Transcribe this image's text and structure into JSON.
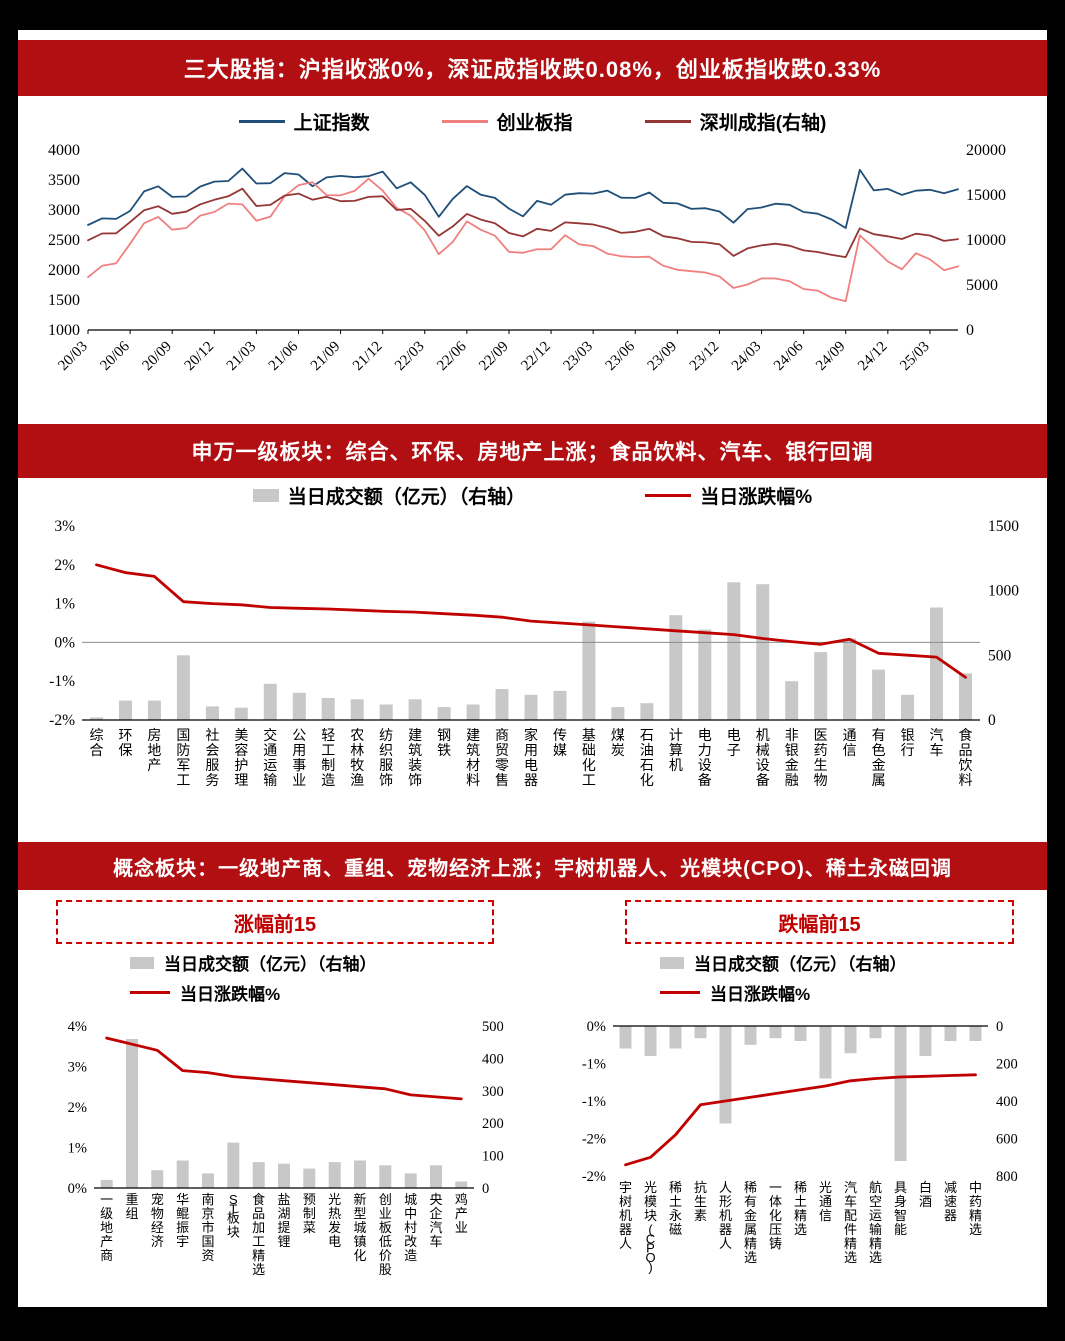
{
  "frame": {
    "bg": "#000000",
    "content_bg": "#ffffff"
  },
  "colors": {
    "banner_bg": "#b20f13",
    "banner_text": "#ffffff",
    "red_line": "#c00000",
    "gray_bar": "#c8c8c8",
    "index_blue": "#1f4e79",
    "chinext_pink": "#f08080",
    "szse_darkred": "#943634",
    "box_border": "#cc0000",
    "box_text": "#c00000",
    "axis_text": "#000000",
    "zero_line": "#8c8c8c"
  },
  "sections": {
    "index": {
      "banner": "三大股指：沪指收涨0%，深证成指收跌0.08%，创业板指收跌0.33%"
    },
    "industry": {
      "banner": "申万一级板块：综合、环保、房地产上涨；食品饮料、汽车、银行回调"
    },
    "concept": {
      "banner": "概念板块：一级地产商、重组、宠物经济上涨；宇树机器人、光模块(CPO)、稀土永磁回调",
      "gain_box": "涨幅前15",
      "loss_box": "跌幅前15"
    }
  },
  "legends": {
    "turnover": "当日成交额（亿元）（右轴）",
    "change": "当日涨跌幅%"
  },
  "chart_data": [
    {
      "id": "index-lines",
      "type": "line",
      "x_tick_labels": [
        "20/03",
        "20/06",
        "20/09",
        "20/12",
        "21/03",
        "21/06",
        "21/09",
        "21/12",
        "22/03",
        "22/06",
        "22/09",
        "22/12",
        "23/03",
        "23/06",
        "23/09",
        "23/12",
        "24/03",
        "24/06",
        "24/09",
        "24/12",
        "25/03"
      ],
      "x_tick_every": 3,
      "left_axis": {
        "min": 1000,
        "max": 4000,
        "ticks": [
          4000,
          3500,
          3000,
          2500,
          2000,
          1500,
          1000
        ]
      },
      "right_axis": {
        "min": 0,
        "max": 20000,
        "ticks": [
          20000,
          15000,
          10000,
          5000,
          0
        ]
      },
      "series": [
        {
          "name": "上证指数",
          "color": "#1f4e79",
          "axis": "left",
          "values": [
            2750,
            2860,
            2852,
            2985,
            3310,
            3395,
            3218,
            3225,
            3392,
            3473,
            3483,
            3690,
            3442,
            3447,
            3615,
            3591,
            3397,
            3544,
            3568,
            3547,
            3564,
            3640,
            3361,
            3462,
            3252,
            2886,
            3186,
            3399,
            3253,
            3202,
            3024,
            2893,
            3151,
            3089,
            3255,
            3280,
            3273,
            3323,
            3205,
            3202,
            3291,
            3120,
            3110,
            3019,
            3030,
            2975,
            2789,
            3015,
            3041,
            3105,
            3087,
            2967,
            2939,
            2842,
            2700,
            3670,
            3326,
            3352,
            3251,
            3321,
            3336,
            3279,
            3347
          ]
        },
        {
          "name": "创业板指",
          "color": "#f08080",
          "axis": "left",
          "values": [
            1880,
            2070,
            2110,
            2439,
            2780,
            2885,
            2672,
            2700,
            2906,
            2966,
            3106,
            3093,
            2821,
            2890,
            3229,
            3413,
            3465,
            3248,
            3245,
            3319,
            3521,
            3322,
            3035,
            2905,
            2660,
            2264,
            2469,
            2810,
            2670,
            2571,
            2302,
            2286,
            2345,
            2346,
            2580,
            2429,
            2399,
            2274,
            2229,
            2215,
            2222,
            2072,
            2003,
            1980,
            1959,
            1891,
            1700,
            1758,
            1860,
            1858,
            1813,
            1683,
            1656,
            1536,
            1480,
            2576,
            2367,
            2141,
            2012,
            2280,
            2179,
            1996,
            2060
          ]
        },
        {
          "name": "深圳成指(右轴)",
          "color": "#943634",
          "axis": "right",
          "values": [
            9962,
            10721,
            10746,
            11992,
            13310,
            13758,
            12907,
            13144,
            13970,
            14470,
            14857,
            15700,
            13778,
            13903,
            14937,
            15161,
            14473,
            14801,
            14309,
            14345,
            14792,
            14857,
            13328,
            13462,
            12118,
            10477,
            11512,
            12896,
            12266,
            11870,
            10778,
            10397,
            11240,
            11016,
            11958,
            11852,
            11726,
            11338,
            10794,
            10914,
            11240,
            10418,
            10190,
            9788,
            9730,
            9525,
            8237,
            9069,
            9401,
            9587,
            9364,
            8849,
            8670,
            8348,
            8100,
            11300,
            10650,
            10415,
            10110,
            10700,
            10504,
            9900,
            10100
          ]
        }
      ]
    },
    {
      "id": "industry",
      "type": "bar-line",
      "categories": [
        "综合",
        "环保",
        "房地产",
        "国防军工",
        "社会服务",
        "美容护理",
        "交通运输",
        "公用事业",
        "轻工制造",
        "农林牧渔",
        "纺织服饰",
        "建筑装饰",
        "钢铁",
        "建筑材料",
        "商贸零售",
        "家用电器",
        "传媒",
        "基础化工",
        "煤炭",
        "石油石化",
        "计算机",
        "电力设备",
        "电子",
        "机械设备",
        "非银金融",
        "医药生物",
        "通信",
        "有色金属",
        "银行",
        "汽车",
        "食品饮料"
      ],
      "bar_series": {
        "name": "当日成交额（亿元）（右轴）",
        "color": "#c8c8c8",
        "axis": "right",
        "values": [
          20,
          150,
          150,
          500,
          105,
          95,
          280,
          210,
          170,
          160,
          120,
          160,
          100,
          120,
          240,
          195,
          225,
          760,
          100,
          130,
          810,
          700,
          1065,
          1050,
          300,
          525,
          630,
          390,
          195,
          870,
          360
        ]
      },
      "line_series": {
        "name": "当日涨跌幅%",
        "color": "#c00000",
        "axis": "left",
        "values": [
          2.0,
          1.8,
          1.7,
          1.05,
          1.0,
          0.97,
          0.9,
          0.88,
          0.86,
          0.83,
          0.8,
          0.78,
          0.74,
          0.7,
          0.65,
          0.55,
          0.5,
          0.45,
          0.4,
          0.35,
          0.3,
          0.25,
          0.2,
          0.1,
          0.02,
          -0.05,
          0.08,
          -0.28,
          -0.33,
          -0.38,
          -0.9
        ]
      },
      "left_axis": {
        "min": -2,
        "max": 3,
        "tick_values": [
          3,
          2,
          1,
          0,
          -1,
          -2
        ],
        "ticks": [
          "3%",
          "2%",
          "1%",
          "0%",
          "-1%",
          "-2%"
        ]
      },
      "right_axis": {
        "min": 0,
        "max": 1500,
        "ticks": [
          1500,
          1000,
          500,
          0
        ],
        "inverted": false
      },
      "zero_line": true
    },
    {
      "id": "concept-gainers",
      "type": "bar-line",
      "title": "涨幅前15",
      "categories": [
        "一级地产商",
        "重组",
        "宠物经济",
        "华鲲振宇",
        "南京市国资",
        "ST板块",
        "食品加工精选",
        "盐湖提锂",
        "预制菜",
        "光热发电",
        "新型城镇化",
        "创业板低价股",
        "城中村改造",
        "央企汽车",
        "鸡产业"
      ],
      "bar_series": {
        "name": "当日成交额（亿元）（右轴）",
        "color": "#c8c8c8",
        "axis": "right",
        "values": [
          25,
          460,
          55,
          85,
          45,
          140,
          80,
          75,
          60,
          80,
          85,
          70,
          45,
          70,
          20
        ]
      },
      "line_series": {
        "name": "当日涨跌幅%",
        "color": "#c00000",
        "axis": "left",
        "values": [
          3.7,
          3.55,
          3.4,
          2.9,
          2.85,
          2.75,
          2.7,
          2.65,
          2.6,
          2.55,
          2.5,
          2.45,
          2.3,
          2.25,
          2.2
        ]
      },
      "left_axis": {
        "min": 0,
        "max": 4,
        "tick_values": [
          4,
          3,
          2,
          1,
          0
        ],
        "ticks": [
          "4%",
          "3%",
          "2%",
          "1%",
          "0%"
        ]
      },
      "right_axis": {
        "min": 0,
        "max": 500,
        "ticks": [
          500,
          400,
          300,
          200,
          100,
          0
        ],
        "inverted": false
      },
      "zero_line": false
    },
    {
      "id": "concept-losers",
      "type": "bar-line",
      "title": "跌幅前15",
      "categories": [
        "宇树机器人",
        "光模块(CPO)",
        "稀土永磁",
        "抗生素",
        "人形机器人",
        "稀有金属精选",
        "一体化压铸",
        "稀土精选",
        "光通信",
        "汽车配件精选",
        "航空运输精选",
        "具身智能",
        "白酒",
        "减速器",
        "中药精选"
      ],
      "bar_series": {
        "name": "当日成交额（亿元）（右轴）",
        "color": "#c8c8c8",
        "axis": "right",
        "values": [
          120,
          160,
          120,
          65,
          520,
          100,
          65,
          80,
          280,
          145,
          65,
          720,
          160,
          80,
          80
        ]
      },
      "line_series": {
        "name": "当日涨跌幅%",
        "color": "#c00000",
        "axis": "left",
        "values": [
          -1.85,
          -1.75,
          -1.45,
          -1.05,
          -1.0,
          -0.95,
          -0.9,
          -0.85,
          -0.8,
          -0.73,
          -0.7,
          -0.68,
          -0.67,
          -0.66,
          -0.65
        ]
      },
      "left_axis": {
        "min": -2,
        "max": 0,
        "tick_values": [
          0,
          -0.5,
          -1,
          -1.5,
          -2
        ],
        "ticks": [
          "0%",
          "-1%",
          "-1%",
          "-2%",
          "-2%"
        ]
      },
      "right_axis": {
        "min": 0,
        "max": 800,
        "ticks": [
          0,
          200,
          400,
          600,
          800
        ],
        "inverted": true
      },
      "zero_line": false
    }
  ]
}
